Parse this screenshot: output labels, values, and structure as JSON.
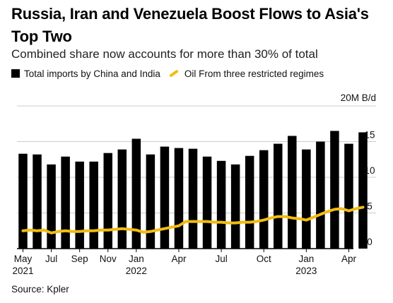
{
  "title": "Russia, Iran and Venezuela Boost Flows to Asia's Top Two",
  "subtitle": "Combined share now accounts for more than 30% of total",
  "source": "Source: Kpler",
  "colors": {
    "bar": "#000000",
    "line": "#f2bc10",
    "grid": "#cccccc"
  },
  "chart_data": {
    "type": "bar",
    "title": "Russia, Iran and Venezuela Boost Flows to Asia's Top Two",
    "subtitle": "Combined share now accounts for more than 30% of total",
    "unit_label": "20M B/d",
    "ylim": [
      0,
      20
    ],
    "y_ticks": [
      0,
      5,
      10,
      15
    ],
    "grid": true,
    "legend": "top",
    "categories": [
      "May 2021",
      "Jun 2021",
      "Jul 2021",
      "Aug 2021",
      "Sep 2021",
      "Oct 2021",
      "Nov 2021",
      "Dec 2021",
      "Jan 2022",
      "Feb 2022",
      "Mar 2022",
      "Apr 2022",
      "May 2022",
      "Jun 2022",
      "Jul 2022",
      "Aug 2022",
      "Sep 2022",
      "Oct 2022",
      "Nov 2022",
      "Dec 2022",
      "Jan 2023",
      "Feb 2023",
      "Mar 2023",
      "Apr 2023",
      "May 2023"
    ],
    "x_tick_labels": [
      {
        "index": 0,
        "label": "May",
        "year": "2021"
      },
      {
        "index": 2,
        "label": "Jul",
        "year": ""
      },
      {
        "index": 4,
        "label": "Sep",
        "year": ""
      },
      {
        "index": 6,
        "label": "Nov",
        "year": ""
      },
      {
        "index": 8,
        "label": "Jan",
        "year": "2022"
      },
      {
        "index": 11,
        "label": "Apr",
        "year": ""
      },
      {
        "index": 14,
        "label": "Jul",
        "year": ""
      },
      {
        "index": 17,
        "label": "Oct",
        "year": ""
      },
      {
        "index": 20,
        "label": "Jan",
        "year": "2023"
      },
      {
        "index": 23,
        "label": "Apr",
        "year": ""
      }
    ],
    "series": [
      {
        "name": "Total imports by China and India",
        "kind": "bar",
        "values": [
          13.3,
          13.2,
          11.8,
          12.9,
          12.2,
          12.2,
          13.4,
          13.9,
          15.4,
          13.2,
          14.3,
          14.1,
          14.0,
          12.9,
          12.3,
          11.8,
          13.0,
          13.8,
          14.7,
          15.8,
          13.9,
          15.0,
          16.5,
          14.7,
          16.3
        ]
      },
      {
        "name": "Oil From three restricted regimes",
        "kind": "line",
        "x": [
          0,
          0.5,
          1,
          1.5,
          2,
          2.5,
          3,
          3.5,
          4,
          4.5,
          5,
          5.5,
          6,
          6.5,
          7,
          7.5,
          8,
          8.5,
          9,
          9.5,
          10,
          10.5,
          11,
          11.5,
          12,
          12.5,
          13,
          13.5,
          14,
          14.5,
          15,
          15.5,
          16,
          16.5,
          17,
          17.5,
          18,
          18.5,
          19,
          19.5,
          20,
          20.5,
          21,
          21.5,
          22,
          22.5,
          23,
          23.5,
          24
        ],
        "values": [
          2.5,
          2.6,
          2.5,
          2.6,
          2.2,
          2.4,
          2.5,
          2.4,
          2.4,
          2.5,
          2.5,
          2.6,
          2.6,
          2.7,
          2.8,
          2.7,
          2.6,
          2.3,
          2.4,
          2.6,
          2.8,
          3.0,
          3.2,
          3.8,
          3.8,
          3.8,
          3.8,
          3.7,
          3.7,
          3.6,
          3.6,
          3.7,
          3.7,
          3.8,
          4.0,
          4.3,
          4.5,
          4.5,
          4.3,
          4.2,
          4.0,
          4.4,
          4.8,
          5.2,
          5.5,
          5.6,
          5.3,
          5.6,
          5.8
        ]
      }
    ]
  }
}
